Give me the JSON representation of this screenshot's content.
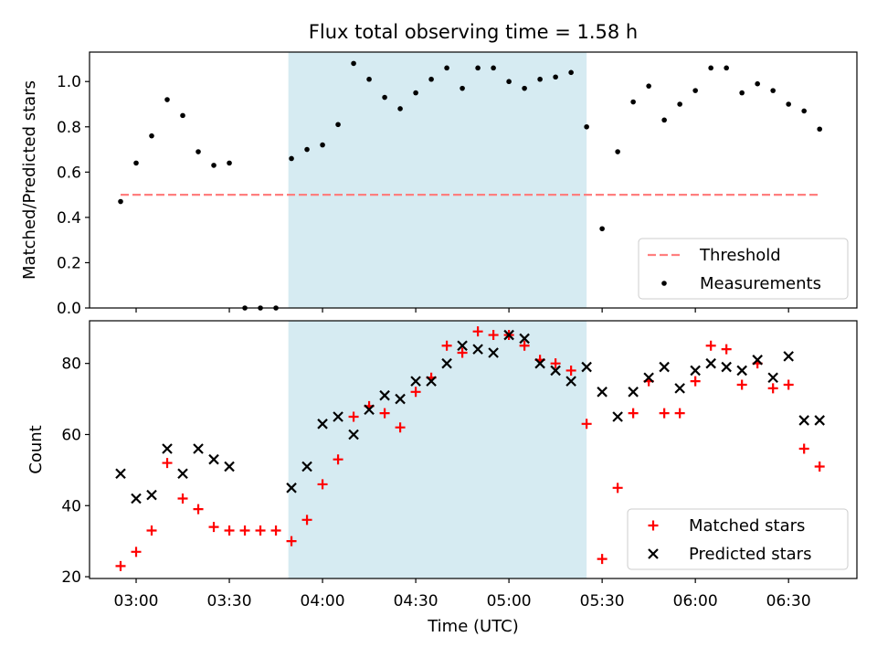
{
  "figure": {
    "title": "Flux total observing time = 1.58 h",
    "xlabel": "Time (UTC)",
    "x_ticks": [
      "03:00",
      "03:30",
      "04:00",
      "04:30",
      "05:00",
      "05:30",
      "06:00",
      "06:30"
    ],
    "x_range": [
      "02:45",
      "06:52"
    ],
    "shaded_interval": [
      "03:49",
      "05:25"
    ],
    "shade_color": "#add8e6"
  },
  "chart_data": [
    {
      "type": "scatter",
      "ylabel": "Matched/Predicted stars",
      "ylim": [
        0,
        1.13
      ],
      "y_ticks": [
        "0.0",
        "0.2",
        "0.4",
        "0.6",
        "0.8",
        "1.0"
      ],
      "legend_position": "lower-right",
      "threshold": {
        "name": "Threshold",
        "value": 0.5,
        "x_range": [
          "02:55",
          "06:40"
        ],
        "color": "#ff7f7f",
        "style": "dashed"
      },
      "series": [
        {
          "name": "Measurements",
          "color": "#000000",
          "marker": "dot",
          "points": [
            [
              "02:55",
              0.47
            ],
            [
              "03:00",
              0.64
            ],
            [
              "03:05",
              0.76
            ],
            [
              "03:10",
              0.92
            ],
            [
              "03:15",
              0.85
            ],
            [
              "03:20",
              0.69
            ],
            [
              "03:25",
              0.63
            ],
            [
              "03:30",
              0.64
            ],
            [
              "03:35",
              0.0
            ],
            [
              "03:40",
              0.0
            ],
            [
              "03:45",
              0.0
            ],
            [
              "03:50",
              0.66
            ],
            [
              "03:55",
              0.7
            ],
            [
              "04:00",
              0.72
            ],
            [
              "04:05",
              0.81
            ],
            [
              "04:10",
              1.08
            ],
            [
              "04:15",
              1.01
            ],
            [
              "04:20",
              0.93
            ],
            [
              "04:25",
              0.88
            ],
            [
              "04:30",
              0.95
            ],
            [
              "04:35",
              1.01
            ],
            [
              "04:40",
              1.06
            ],
            [
              "04:45",
              0.97
            ],
            [
              "04:50",
              1.06
            ],
            [
              "04:55",
              1.06
            ],
            [
              "05:00",
              1.0
            ],
            [
              "05:05",
              0.97
            ],
            [
              "05:10",
              1.01
            ],
            [
              "05:15",
              1.02
            ],
            [
              "05:20",
              1.04
            ],
            [
              "05:25",
              0.8
            ],
            [
              "05:30",
              0.35
            ],
            [
              "05:35",
              0.69
            ],
            [
              "05:40",
              0.91
            ],
            [
              "05:45",
              0.98
            ],
            [
              "05:50",
              0.83
            ],
            [
              "05:55",
              0.9
            ],
            [
              "06:00",
              0.96
            ],
            [
              "06:05",
              1.06
            ],
            [
              "06:10",
              1.06
            ],
            [
              "06:15",
              0.95
            ],
            [
              "06:20",
              0.99
            ],
            [
              "06:25",
              0.96
            ],
            [
              "06:30",
              0.9
            ],
            [
              "06:35",
              0.87
            ],
            [
              "06:40",
              0.79
            ]
          ]
        }
      ]
    },
    {
      "type": "scatter",
      "ylabel": "Count",
      "ylim": [
        19.5,
        92
      ],
      "y_ticks": [
        "20",
        "40",
        "60",
        "80"
      ],
      "legend_position": "lower-right",
      "series": [
        {
          "name": "Matched stars",
          "color": "#ff0000",
          "marker": "plus",
          "points": [
            [
              "02:55",
              23
            ],
            [
              "03:00",
              27
            ],
            [
              "03:05",
              33
            ],
            [
              "03:10",
              52
            ],
            [
              "03:15",
              42
            ],
            [
              "03:20",
              39
            ],
            [
              "03:25",
              34
            ],
            [
              "03:30",
              33
            ],
            [
              "03:35",
              33
            ],
            [
              "03:40",
              33
            ],
            [
              "03:45",
              33
            ],
            [
              "03:50",
              30
            ],
            [
              "03:55",
              36
            ],
            [
              "04:00",
              46
            ],
            [
              "04:05",
              53
            ],
            [
              "04:10",
              65
            ],
            [
              "04:15",
              68
            ],
            [
              "04:20",
              66
            ],
            [
              "04:25",
              62
            ],
            [
              "04:30",
              72
            ],
            [
              "04:35",
              76
            ],
            [
              "04:40",
              85
            ],
            [
              "04:45",
              83
            ],
            [
              "04:50",
              89
            ],
            [
              "04:55",
              88
            ],
            [
              "05:00",
              88
            ],
            [
              "05:05",
              85
            ],
            [
              "05:10",
              81
            ],
            [
              "05:15",
              80
            ],
            [
              "05:20",
              78
            ],
            [
              "05:25",
              63
            ],
            [
              "05:30",
              25
            ],
            [
              "05:35",
              45
            ],
            [
              "05:40",
              66
            ],
            [
              "05:45",
              75
            ],
            [
              "05:50",
              66
            ],
            [
              "05:55",
              66
            ],
            [
              "06:00",
              75
            ],
            [
              "06:05",
              85
            ],
            [
              "06:10",
              84
            ],
            [
              "06:15",
              74
            ],
            [
              "06:20",
              80
            ],
            [
              "06:25",
              73
            ],
            [
              "06:30",
              74
            ],
            [
              "06:35",
              56
            ],
            [
              "06:40",
              51
            ]
          ]
        },
        {
          "name": "Predicted stars",
          "color": "#000000",
          "marker": "x",
          "points": [
            [
              "02:55",
              49
            ],
            [
              "03:00",
              42
            ],
            [
              "03:05",
              43
            ],
            [
              "03:10",
              56
            ],
            [
              "03:15",
              49
            ],
            [
              "03:20",
              56
            ],
            [
              "03:25",
              53
            ],
            [
              "03:30",
              51
            ],
            [
              "03:50",
              45
            ],
            [
              "03:55",
              51
            ],
            [
              "04:00",
              63
            ],
            [
              "04:05",
              65
            ],
            [
              "04:10",
              60
            ],
            [
              "04:15",
              67
            ],
            [
              "04:20",
              71
            ],
            [
              "04:25",
              70
            ],
            [
              "04:30",
              75
            ],
            [
              "04:35",
              75
            ],
            [
              "04:40",
              80
            ],
            [
              "04:45",
              85
            ],
            [
              "04:50",
              84
            ],
            [
              "04:55",
              83
            ],
            [
              "05:00",
              88
            ],
            [
              "05:05",
              87
            ],
            [
              "05:10",
              80
            ],
            [
              "05:15",
              78
            ],
            [
              "05:20",
              75
            ],
            [
              "05:25",
              79
            ],
            [
              "05:30",
              72
            ],
            [
              "05:35",
              65
            ],
            [
              "05:40",
              72
            ],
            [
              "05:45",
              76
            ],
            [
              "05:50",
              79
            ],
            [
              "05:55",
              73
            ],
            [
              "06:00",
              78
            ],
            [
              "06:05",
              80
            ],
            [
              "06:10",
              79
            ],
            [
              "06:15",
              78
            ],
            [
              "06:20",
              81
            ],
            [
              "06:25",
              76
            ],
            [
              "06:30",
              82
            ],
            [
              "06:35",
              64
            ],
            [
              "06:40",
              64
            ]
          ]
        }
      ]
    }
  ]
}
